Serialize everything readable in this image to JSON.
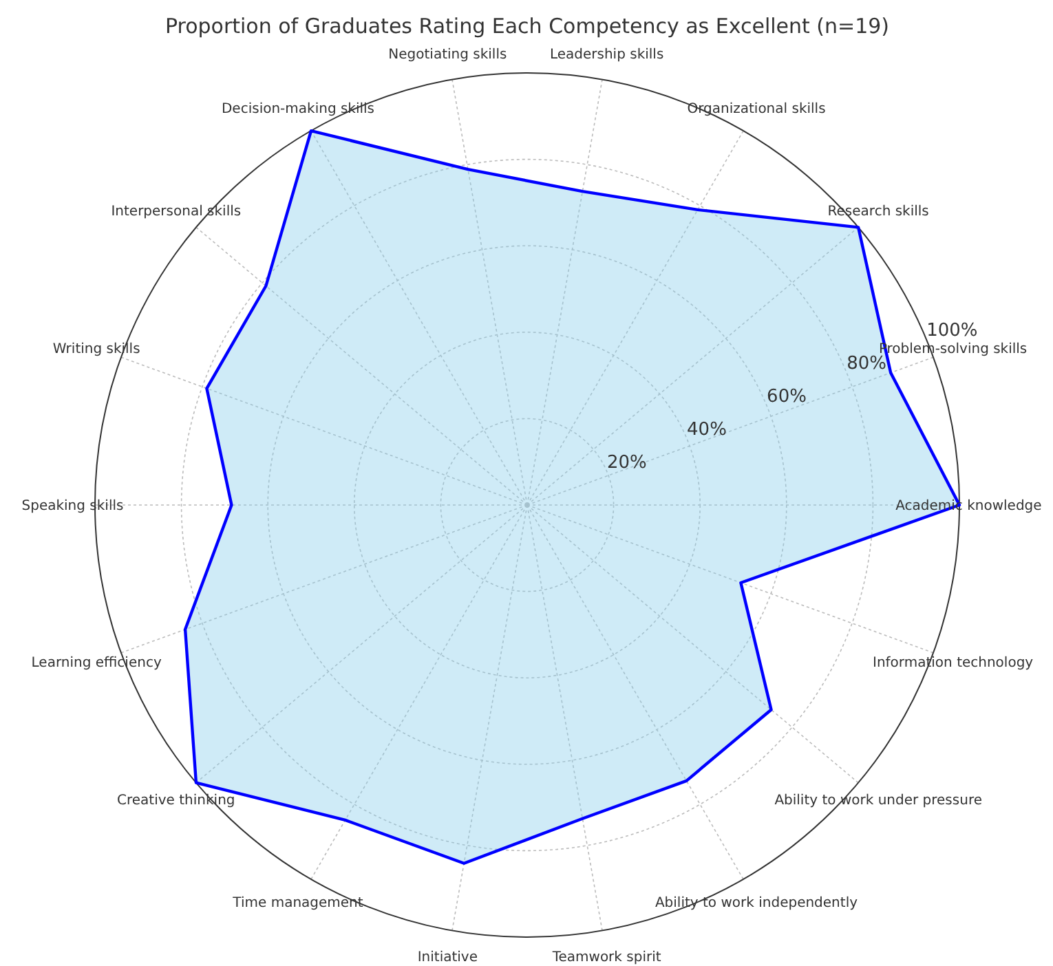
{
  "chart_data": {
    "type": "radar",
    "title": "Proportion of Graduates Rating Each Competency as Excellent (n=19)",
    "categories": [
      "Leadership skills",
      "Organizational skills",
      "Research skills",
      "Problem-solving skills",
      "Academic knowledge",
      "Information technology",
      "Ability to work under pressure",
      "Ability to work independently",
      "Teamwork spirit",
      "Initiative",
      "Time management",
      "Creative thinking",
      "Learning efficiency",
      "Speaking skills",
      "Writing skills",
      "Interpersonal skills",
      "Decision-making skills",
      "Negotiating skills"
    ],
    "series": [
      {
        "color": "#0000ff",
        "values": [
          73.7,
          78.9,
          100,
          89.5,
          100,
          52.6,
          73.7,
          73.7,
          73.7,
          84.2,
          84.2,
          100,
          84.2,
          68.4,
          78.9,
          78.9,
          100,
          78.9
        ]
      }
    ],
    "ylim": [
      0,
      100
    ],
    "yticks": [
      {
        "value": 20,
        "label": "20%"
      },
      {
        "value": 40,
        "label": "40%"
      },
      {
        "value": 60,
        "label": "60%"
      },
      {
        "value": 80,
        "label": "80%"
      },
      {
        "value": 100,
        "label": "100%"
      }
    ],
    "grid": true
  }
}
